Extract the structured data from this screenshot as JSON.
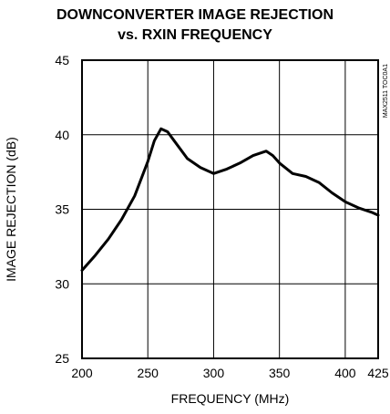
{
  "chart_data": {
    "type": "line",
    "title_line1": "DOWNCONVERTER IMAGE REJECTION",
    "title_line2": "vs. RXIN FREQUENCY",
    "xlabel": "FREQUENCY (MHz)",
    "ylabel": "IMAGE REJECTION (dB)",
    "part_code": "MAX2511 TOC0A1",
    "xlim": [
      200,
      425
    ],
    "ylim": [
      25,
      45
    ],
    "x_ticks": [
      200,
      250,
      300,
      350,
      400,
      425
    ],
    "y_ticks": [
      25,
      30,
      35,
      40,
      45
    ],
    "x_gridlines": [
      250,
      300,
      350,
      400
    ],
    "y_gridlines": [
      30,
      35,
      40
    ],
    "grid": true,
    "series": [
      {
        "x": [
          200,
          210,
          220,
          230,
          240,
          250,
          255,
          260,
          265,
          270,
          280,
          290,
          300,
          310,
          320,
          330,
          340,
          345,
          350,
          360,
          370,
          380,
          390,
          400,
          410,
          420,
          425
        ],
        "y": [
          30.9,
          31.9,
          33.0,
          34.3,
          35.9,
          38.2,
          39.6,
          40.4,
          40.2,
          39.6,
          38.4,
          37.8,
          37.4,
          37.7,
          38.1,
          38.6,
          38.9,
          38.6,
          38.1,
          37.4,
          37.2,
          36.8,
          36.1,
          35.5,
          35.1,
          34.8,
          34.6
        ]
      }
    ]
  }
}
